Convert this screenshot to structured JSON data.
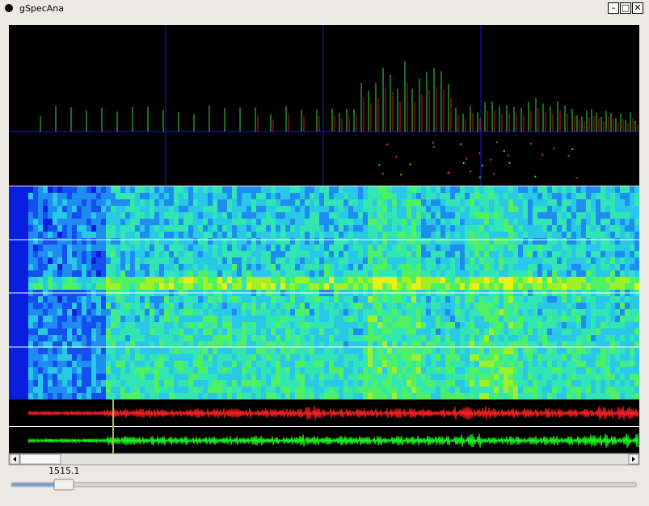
{
  "window": {
    "title": "gSpecAna"
  },
  "position": {
    "value": 1515.1
  }
}
